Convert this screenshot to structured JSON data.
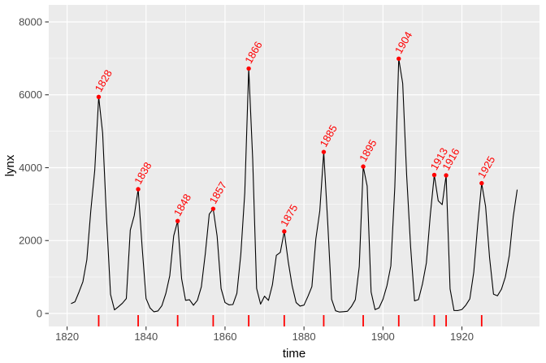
{
  "colors": {
    "figure_bg": "#FFFFFF",
    "panel_bg": "#EBEBEB",
    "grid": "#FFFFFF",
    "line": "#000000",
    "peak": "#FF0000",
    "tick_label": "#4D4D4D",
    "tick_mark": "#333333",
    "axis_title": "#000000"
  },
  "chart_data": {
    "type": "line",
    "title": "",
    "xlabel": "time",
    "ylabel": "lynx",
    "x_start": 1821,
    "x_end": 1934,
    "xlim": [
      1815.35,
      1939.65
    ],
    "ylim": [
      -357,
      8468
    ],
    "x_ticks": [
      1820,
      1840,
      1860,
      1880,
      1900,
      1920
    ],
    "x_minor": [
      1830,
      1850,
      1870,
      1890,
      1910,
      1930
    ],
    "y_ticks": [
      0,
      2000,
      4000,
      6000,
      8000
    ],
    "y_minor": [
      1000,
      3000,
      5000,
      7000
    ],
    "grid": "on",
    "legend": "none",
    "values": [
      269,
      321,
      585,
      871,
      1475,
      2821,
      3928,
      5943,
      4950,
      2577,
      523,
      98,
      184,
      279,
      409,
      2285,
      2685,
      3409,
      1824,
      409,
      151,
      45,
      68,
      213,
      546,
      1033,
      2129,
      2536,
      957,
      361,
      377,
      225,
      360,
      731,
      1638,
      2725,
      2871,
      2119,
      684,
      299,
      236,
      245,
      552,
      1623,
      3311,
      6721,
      4254,
      687,
      255,
      473,
      358,
      784,
      1594,
      1676,
      2251,
      1426,
      756,
      299,
      201,
      229,
      469,
      736,
      2042,
      2811,
      4431,
      2511,
      389,
      73,
      39,
      49,
      59,
      188,
      377,
      1292,
      4031,
      3495,
      587,
      105,
      153,
      387,
      758,
      1307,
      3465,
      6991,
      6313,
      3794,
      1836,
      345,
      382,
      808,
      1388,
      2713,
      3800,
      3091,
      2985,
      3790,
      674,
      81,
      80,
      108,
      229,
      399,
      1132,
      2432,
      3574,
      2935,
      1537,
      529,
      485,
      662,
      1000,
      1590,
      2657,
      3396
    ],
    "peaks": [
      {
        "year": 1828,
        "value": 5943
      },
      {
        "year": 1838,
        "value": 3409
      },
      {
        "year": 1848,
        "value": 2536
      },
      {
        "year": 1857,
        "value": 2871
      },
      {
        "year": 1866,
        "value": 6721
      },
      {
        "year": 1875,
        "value": 2251
      },
      {
        "year": 1885,
        "value": 4431
      },
      {
        "year": 1895,
        "value": 4031
      },
      {
        "year": 1904,
        "value": 6991
      },
      {
        "year": 1913,
        "value": 3800
      },
      {
        "year": 1916,
        "value": 3790
      },
      {
        "year": 1925,
        "value": 3574
      }
    ],
    "rug_years": [
      1828,
      1838,
      1848,
      1857,
      1866,
      1875,
      1885,
      1895,
      1904,
      1913,
      1916,
      1925
    ],
    "peak_label_angle": -60
  }
}
